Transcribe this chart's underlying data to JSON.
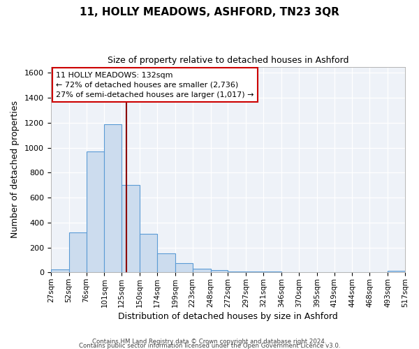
{
  "title": "11, HOLLY MEADOWS, ASHFORD, TN23 3QR",
  "subtitle": "Size of property relative to detached houses in Ashford",
  "xlabel": "Distribution of detached houses by size in Ashford",
  "ylabel": "Number of detached properties",
  "bar_color": "#ccdcee",
  "bar_edge_color": "#5b9bd5",
  "background_color": "#eef2f8",
  "grid_color": "#ffffff",
  "red_line_x": 132,
  "annotation_line1": "11 HOLLY MEADOWS: 132sqm",
  "annotation_line2": "← 72% of detached houses are smaller (2,736)",
  "annotation_line3": "27% of semi-detached houses are larger (1,017) →",
  "annotation_box_color": "#ffffff",
  "annotation_box_edge": "#cc0000",
  "footer1": "Contains HM Land Registry data © Crown copyright and database right 2024.",
  "footer2": "Contains public sector information licensed under the Open Government Licence v3.0.",
  "bins": [
    27,
    52,
    76,
    101,
    125,
    150,
    174,
    199,
    223,
    248,
    272,
    297,
    321,
    346,
    370,
    395,
    419,
    444,
    468,
    493,
    517
  ],
  "counts": [
    25,
    320,
    970,
    1190,
    700,
    310,
    150,
    75,
    30,
    20,
    5,
    5,
    5,
    2,
    2,
    2,
    2,
    2,
    2,
    15
  ],
  "ylim": [
    0,
    1650
  ],
  "yticks": [
    0,
    200,
    400,
    600,
    800,
    1000,
    1200,
    1400,
    1600
  ],
  "xlim_labels": [
    "27sqm",
    "52sqm",
    "76sqm",
    "101sqm",
    "125sqm",
    "150sqm",
    "174sqm",
    "199sqm",
    "223sqm",
    "248sqm",
    "272sqm",
    "297sqm",
    "321sqm",
    "346sqm",
    "370sqm",
    "395sqm",
    "419sqm",
    "444sqm",
    "468sqm",
    "493sqm",
    "517sqm"
  ]
}
